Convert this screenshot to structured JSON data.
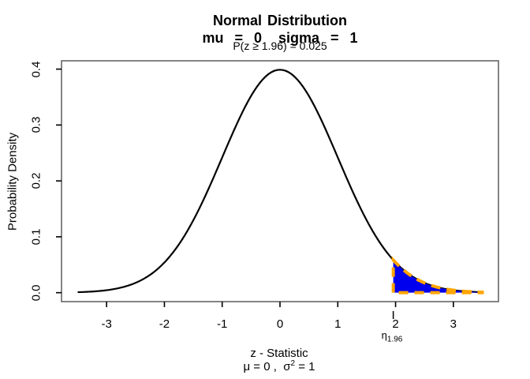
{
  "figure": {
    "title_line1": "Normal Distribution",
    "title_line2": "mu  =  0   sigma  =  1",
    "probability_annotation": "P(z ≥ 1.96) = 0.025",
    "x_axis": {
      "label_line1": "z - Statistic",
      "params_prefix": "μ = 0 ,  σ",
      "params_sup": "2",
      "params_suffix": " = 1"
    },
    "y_axis": {
      "label": "Probability Density"
    },
    "critical_annotation": {
      "symbol": "η",
      "subscript": "1.96"
    }
  },
  "chart_data": {
    "type": "area",
    "title": "Normal Distribution",
    "subtitle": "mu = 0  sigma = 1",
    "annotation": "P(z ≥ 1.96) = 0.025",
    "xlabel": "z - Statistic",
    "xlabel2": "μ = 0 , σ² = 1",
    "ylabel": "Probability Density",
    "distribution": "normal",
    "mu": 0,
    "sigma": 1,
    "x_range": [
      -3.5,
      3.5
    ],
    "xlim": [
      -3.78,
      3.78
    ],
    "ylim": [
      -0.016,
      0.4149
    ],
    "x_ticks": [
      -3,
      -2,
      -1,
      0,
      1,
      2,
      3
    ],
    "y_ticks": [
      0,
      0.1,
      0.2,
      0.3,
      0.4
    ],
    "y_tick_labels": [
      "0.0",
      "0.1",
      "0.2",
      "0.3",
      "0.4"
    ],
    "peak_density": 0.3989,
    "critical_value": 1.96,
    "density_at_critical": 0.0584,
    "shade_from": 1.96,
    "shade_to": 3.5,
    "shaded_probability": 0.025,
    "grid": false,
    "legend": false,
    "colors": {
      "curve": "#000000",
      "fill": "#0000ee",
      "border": "#ffa500",
      "box": "#666666",
      "tick": "#000000"
    }
  }
}
